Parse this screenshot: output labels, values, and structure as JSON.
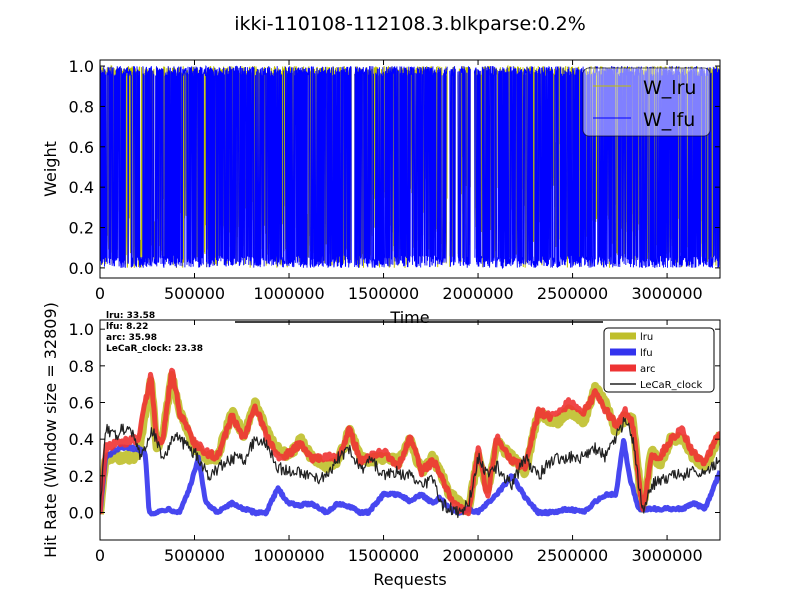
{
  "figure": {
    "title": "ikki-110108-112108.3.blkparse:0.2%"
  },
  "chart_data": [
    {
      "type": "line",
      "panel": "weights",
      "xlabel": "Time",
      "ylabel": "Weight",
      "xlim": [
        0,
        3280000
      ],
      "ylim": [
        -0.05,
        1.03
      ],
      "xticks": [
        0,
        500000,
        1000000,
        1500000,
        2000000,
        2500000,
        3000000
      ],
      "xtick_labels": [
        "0",
        "500000",
        "1000000",
        "1500000",
        "2000000",
        "2500000",
        "3000000"
      ],
      "yticks": [
        0.0,
        0.2,
        0.4,
        0.6,
        0.8,
        1.0
      ],
      "ytick_labels": [
        "0.0",
        "0.2",
        "0.4",
        "0.6",
        "0.8",
        "1.0"
      ],
      "legend_position": "top-right",
      "series": [
        {
          "name": "W_lru",
          "color": "#bfbf00",
          "x": [
            0,
            100000,
            250000,
            400000,
            800000,
            1300000,
            1380000,
            1420000,
            1850000,
            1900000,
            2100000,
            2600000,
            2900000,
            3280000
          ],
          "y": [
            0.2,
            0.3,
            0.1,
            0.5,
            0.4,
            0.2,
            0.05,
            0.6,
            0.3,
            0.5,
            0.4,
            0.6,
            0.1,
            0.4
          ]
        },
        {
          "name": "W_lfu",
          "color": "#0000ff",
          "x": [
            0,
            100000,
            250000,
            400000,
            800000,
            1300000,
            1380000,
            1420000,
            1850000,
            1900000,
            2100000,
            2600000,
            2900000,
            3280000
          ],
          "y": [
            0.8,
            0.7,
            0.9,
            0.5,
            0.6,
            0.8,
            0.95,
            0.4,
            0.7,
            0.5,
            0.6,
            0.4,
            0.9,
            0.6
          ]
        }
      ]
    },
    {
      "type": "line",
      "panel": "hit_rate",
      "xlabel": "Requests",
      "ylabel": "Hit Rate (Window size = 32809)",
      "xlim": [
        0,
        3280000
      ],
      "ylim": [
        -0.15,
        1.05
      ],
      "xticks": [
        0,
        500000,
        1000000,
        1500000,
        2000000,
        2500000,
        3000000
      ],
      "xtick_labels": [
        "0",
        "500000",
        "1000000",
        "1500000",
        "2000000",
        "2500000",
        "3000000"
      ],
      "yticks": [
        0.0,
        0.2,
        0.4,
        0.6,
        0.8,
        1.0
      ],
      "ytick_labels": [
        "0.0",
        "0.2",
        "0.4",
        "0.6",
        "0.8",
        "1.0"
      ],
      "legend_position": "top-right",
      "annotations": [
        "lru:  33.58",
        "lfu:  8.22",
        "arc:  35.98",
        "LeCaR_clock:  23.38"
      ],
      "series": [
        {
          "name": "lru",
          "color": "#bfbf2a",
          "x": [
            0,
            30000,
            100000,
            200000,
            270000,
            300000,
            330000,
            380000,
            420000,
            500000,
            560000,
            620000,
            700000,
            760000,
            820000,
            880000,
            940000,
            1000000,
            1060000,
            1120000,
            1200000,
            1260000,
            1320000,
            1380000,
            1420000,
            1500000,
            1580000,
            1640000,
            1700000,
            1760000,
            1800000,
            1850000,
            1900000,
            1950000,
            2000000,
            2050000,
            2100000,
            2180000,
            2250000,
            2320000,
            2400000,
            2480000,
            2560000,
            2620000,
            2680000,
            2730000,
            2780000,
            2820000,
            2870000,
            2920000,
            2960000,
            3020000,
            3080000,
            3140000,
            3200000,
            3280000
          ],
          "y": [
            0.0,
            0.3,
            0.3,
            0.3,
            0.72,
            0.35,
            0.4,
            0.75,
            0.55,
            0.35,
            0.3,
            0.3,
            0.55,
            0.42,
            0.6,
            0.45,
            0.35,
            0.3,
            0.4,
            0.3,
            0.25,
            0.28,
            0.45,
            0.3,
            0.28,
            0.3,
            0.28,
            0.4,
            0.22,
            0.3,
            0.22,
            0.1,
            0.05,
            0.02,
            0.3,
            0.12,
            0.38,
            0.3,
            0.22,
            0.55,
            0.48,
            0.55,
            0.5,
            0.68,
            0.58,
            0.44,
            0.52,
            0.5,
            0.0,
            0.35,
            0.25,
            0.4,
            0.4,
            0.3,
            0.25,
            0.42
          ]
        },
        {
          "name": "lfu",
          "color": "#3333ee",
          "x": [
            0,
            30000,
            100000,
            200000,
            240000,
            260000,
            300000,
            360000,
            420000,
            480000,
            520000,
            560000,
            620000,
            700000,
            760000,
            820000,
            880000,
            940000,
            1000000,
            1060000,
            1120000,
            1200000,
            1260000,
            1320000,
            1380000,
            1420000,
            1500000,
            1580000,
            1640000,
            1700000,
            1760000,
            1800000,
            1850000,
            1900000,
            1950000,
            2000000,
            2050000,
            2100000,
            2180000,
            2250000,
            2320000,
            2400000,
            2480000,
            2560000,
            2620000,
            2680000,
            2730000,
            2770000,
            2800000,
            2850000,
            2900000,
            2960000,
            3020000,
            3080000,
            3140000,
            3200000,
            3280000
          ],
          "y": [
            0.0,
            0.3,
            0.35,
            0.35,
            0.32,
            0.0,
            0.0,
            0.02,
            0.0,
            0.15,
            0.3,
            0.05,
            0.0,
            0.05,
            0.02,
            0.0,
            0.0,
            0.13,
            0.05,
            0.04,
            0.05,
            0.0,
            0.05,
            0.03,
            0.0,
            0.0,
            0.1,
            0.1,
            0.06,
            0.1,
            0.05,
            0.08,
            0.02,
            0.0,
            0.02,
            0.0,
            0.05,
            0.1,
            0.2,
            0.08,
            0.0,
            0.0,
            0.02,
            0.0,
            0.06,
            0.1,
            0.1,
            0.4,
            0.2,
            0.02,
            0.02,
            0.02,
            0.02,
            0.02,
            0.05,
            0.02,
            0.22
          ]
        },
        {
          "name": "arc",
          "color": "#ee3333",
          "x": [
            0,
            30000,
            100000,
            200000,
            270000,
            300000,
            330000,
            380000,
            420000,
            500000,
            560000,
            620000,
            700000,
            760000,
            820000,
            880000,
            940000,
            1000000,
            1060000,
            1120000,
            1200000,
            1260000,
            1320000,
            1380000,
            1420000,
            1500000,
            1580000,
            1640000,
            1700000,
            1760000,
            1800000,
            1850000,
            1900000,
            1950000,
            2000000,
            2050000,
            2100000,
            2180000,
            2250000,
            2320000,
            2400000,
            2480000,
            2560000,
            2620000,
            2680000,
            2730000,
            2780000,
            2820000,
            2870000,
            2920000,
            2960000,
            3020000,
            3080000,
            3140000,
            3200000,
            3280000
          ],
          "y": [
            0.0,
            0.35,
            0.38,
            0.4,
            0.75,
            0.4,
            0.38,
            0.78,
            0.55,
            0.38,
            0.33,
            0.3,
            0.53,
            0.4,
            0.58,
            0.42,
            0.3,
            0.32,
            0.38,
            0.3,
            0.3,
            0.3,
            0.45,
            0.28,
            0.3,
            0.33,
            0.25,
            0.42,
            0.22,
            0.28,
            0.22,
            0.08,
            0.02,
            0.0,
            0.35,
            0.08,
            0.42,
            0.28,
            0.25,
            0.55,
            0.52,
            0.6,
            0.55,
            0.65,
            0.55,
            0.48,
            0.55,
            0.48,
            0.0,
            0.32,
            0.3,
            0.4,
            0.45,
            0.32,
            0.28,
            0.44
          ]
        },
        {
          "name": "LeCaR_clock",
          "color": "#222222",
          "x": [
            0,
            30000,
            80000,
            150000,
            220000,
            280000,
            330000,
            400000,
            470000,
            520000,
            570000,
            640000,
            700000,
            760000,
            820000,
            880000,
            940000,
            1000000,
            1060000,
            1120000,
            1200000,
            1260000,
            1320000,
            1380000,
            1420000,
            1500000,
            1580000,
            1640000,
            1700000,
            1760000,
            1800000,
            1850000,
            1900000,
            1950000,
            2000000,
            2050000,
            2100000,
            2180000,
            2250000,
            2320000,
            2400000,
            2480000,
            2560000,
            2620000,
            2680000,
            2730000,
            2780000,
            2820000,
            2870000,
            2920000,
            2960000,
            3020000,
            3080000,
            3140000,
            3200000,
            3280000
          ],
          "y": [
            0.0,
            0.45,
            0.42,
            0.48,
            0.3,
            0.45,
            0.3,
            0.42,
            0.35,
            0.3,
            0.2,
            0.25,
            0.3,
            0.28,
            0.4,
            0.38,
            0.25,
            0.22,
            0.22,
            0.18,
            0.2,
            0.3,
            0.35,
            0.22,
            0.3,
            0.2,
            0.22,
            0.2,
            0.15,
            0.18,
            0.05,
            0.02,
            0.0,
            0.05,
            0.3,
            0.2,
            0.25,
            0.15,
            0.3,
            0.2,
            0.3,
            0.3,
            0.3,
            0.35,
            0.3,
            0.42,
            0.5,
            0.4,
            0.0,
            0.15,
            0.18,
            0.2,
            0.2,
            0.22,
            0.2,
            0.3
          ]
        }
      ]
    }
  ]
}
